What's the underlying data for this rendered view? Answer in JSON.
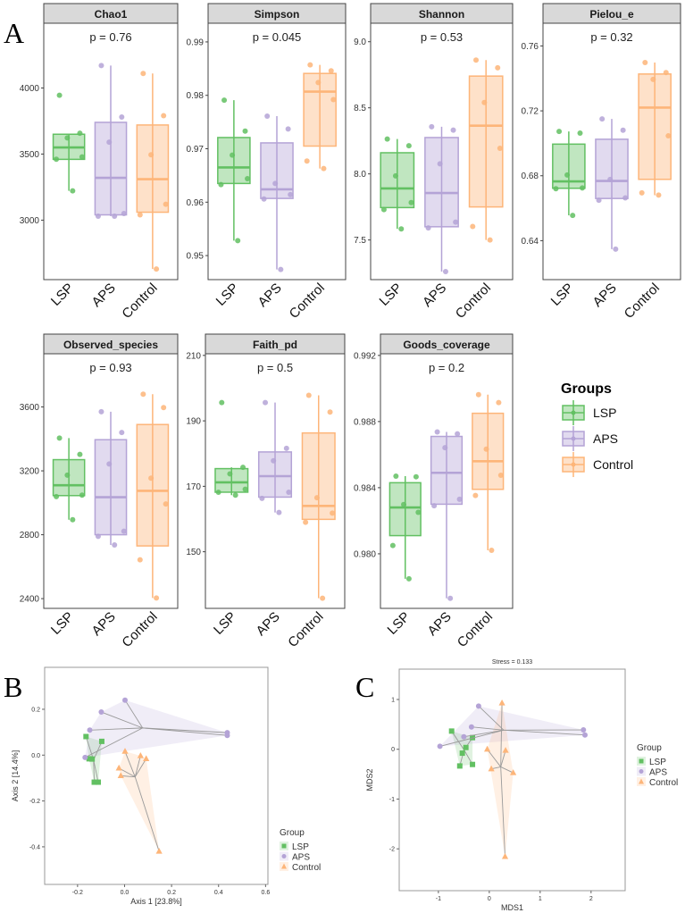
{
  "figure": {
    "panel_labels": [
      "A",
      "B",
      "C"
    ]
  },
  "groups": [
    {
      "name": "LSP",
      "color": "#62c062"
    },
    {
      "name": "APS",
      "color": "#b4a3d6"
    },
    {
      "name": "Control",
      "color": "#fdb579"
    }
  ],
  "legend": {
    "title": "Groups",
    "entries": [
      "LSP",
      "APS",
      "Control"
    ]
  },
  "chart_data": [
    {
      "type": "box",
      "title": "Chao1",
      "p_label": "p = 0.76",
      "ylim": [
        2550,
        4490
      ],
      "yticks": [
        3000,
        3500,
        4000
      ],
      "ytick_labels": [
        "3000",
        "3500",
        "4000"
      ],
      "categories": [
        "LSP",
        "APS",
        "Control"
      ],
      "series": [
        {
          "name": "LSP",
          "points": [
            3945,
            3658,
            3622,
            3479,
            3461,
            3222
          ],
          "q1": 3460,
          "median": 3550,
          "q3": 3650,
          "whisker_low": 3222,
          "whisker_high": 3650
        },
        {
          "name": "APS",
          "points": [
            4170,
            3780,
            3590,
            3050,
            3030,
            3030
          ],
          "q1": 3040,
          "median": 3320,
          "q3": 3740,
          "whisker_low": 3030,
          "whisker_high": 4170
        },
        {
          "name": "Control",
          "points": [
            4110,
            3790,
            3495,
            3120,
            3040,
            2630
          ],
          "q1": 3060,
          "median": 3310,
          "q3": 3720,
          "whisker_low": 2630,
          "whisker_high": 4110
        }
      ]
    },
    {
      "type": "box",
      "title": "Simpson",
      "p_label": "p = 0.045",
      "ylim": [
        0.9455,
        0.9935
      ],
      "yticks": [
        0.95,
        0.96,
        0.97,
        0.98,
        0.99
      ],
      "ytick_labels": [
        "0.95",
        "0.96",
        "0.97",
        "0.98",
        "0.99"
      ],
      "categories": [
        "LSP",
        "APS",
        "Control"
      ],
      "series": [
        {
          "name": "LSP",
          "points": [
            0.9791,
            0.9733,
            0.9688,
            0.9644,
            0.9633,
            0.9528
          ],
          "q1": 0.9635,
          "median": 0.9665,
          "q3": 0.9721,
          "whisker_low": 0.9528,
          "whisker_high": 0.9791
        },
        {
          "name": "APS",
          "points": [
            0.9761,
            0.9737,
            0.9635,
            0.9614,
            0.9606,
            0.9474
          ],
          "q1": 0.9607,
          "median": 0.9624,
          "q3": 0.9711,
          "whisker_low": 0.9474,
          "whisker_high": 0.9761
        },
        {
          "name": "Control",
          "points": [
            0.9857,
            0.9846,
            0.9824,
            0.9792,
            0.9677,
            0.9663
          ],
          "q1": 0.9705,
          "median": 0.9807,
          "q3": 0.9841,
          "whisker_low": 0.9663,
          "whisker_high": 0.9857
        }
      ]
    },
    {
      "type": "box",
      "title": "Shannon",
      "p_label": "p = 0.53",
      "ylim": [
        7.2,
        9.14
      ],
      "yticks": [
        7.5,
        8.0,
        8.5,
        9.0
      ],
      "ytick_labels": [
        "7.5",
        "8.0",
        "8.5",
        "9.0"
      ],
      "categories": [
        "LSP",
        "APS",
        "Control"
      ],
      "series": [
        {
          "name": "LSP",
          "points": [
            8.264,
            8.213,
            7.985,
            7.783,
            7.73,
            7.584
          ],
          "q1": 7.745,
          "median": 7.89,
          "q3": 8.16,
          "whisker_low": 7.584,
          "whisker_high": 8.264
        },
        {
          "name": "APS",
          "points": [
            8.357,
            8.331,
            8.076,
            7.635,
            7.591,
            7.261
          ],
          "q1": 7.6,
          "median": 7.855,
          "q3": 8.275,
          "whisker_low": 7.261,
          "whisker_high": 8.357
        },
        {
          "name": "Control",
          "points": [
            8.861,
            8.803,
            8.54,
            8.194,
            7.602,
            7.5
          ],
          "q1": 7.75,
          "median": 8.365,
          "q3": 8.74,
          "whisker_low": 7.5,
          "whisker_high": 8.861
        }
      ]
    },
    {
      "type": "box",
      "title": "Pielou_e",
      "p_label": "p = 0.32",
      "ylim": [
        0.616,
        0.774
      ],
      "yticks": [
        0.64,
        0.68,
        0.72,
        0.76
      ],
      "ytick_labels": [
        "0.64",
        "0.68",
        "0.72",
        "0.76"
      ],
      "categories": [
        "LSP",
        "APS",
        "Control"
      ],
      "series": [
        {
          "name": "LSP",
          "points": [
            0.7073,
            0.7063,
            0.6805,
            0.6725,
            0.672,
            0.6556
          ],
          "q1": 0.6723,
          "median": 0.6765,
          "q3": 0.6995,
          "whisker_low": 0.6556,
          "whisker_high": 0.7073
        },
        {
          "name": "APS",
          "points": [
            0.715,
            0.7081,
            0.6777,
            0.6664,
            0.6649,
            0.6348
          ],
          "q1": 0.666,
          "median": 0.6768,
          "q3": 0.7025,
          "whisker_low": 0.6348,
          "whisker_high": 0.715
        },
        {
          "name": "Control",
          "points": [
            0.7498,
            0.7436,
            0.7394,
            0.7046,
            0.6695,
            0.6681
          ],
          "q1": 0.6778,
          "median": 0.722,
          "q3": 0.7427,
          "whisker_low": 0.668,
          "whisker_high": 0.7498
        }
      ]
    },
    {
      "type": "box",
      "title": "Observed_species",
      "p_label": "p = 0.93",
      "ylim": [
        2339,
        3933
      ],
      "yticks": [
        2400,
        2800,
        3200,
        3600
      ],
      "ytick_labels": [
        "2400",
        "2800",
        "3200",
        "3600"
      ],
      "categories": [
        "LSP",
        "APS",
        "Control"
      ],
      "series": [
        {
          "name": "LSP",
          "points": [
            3405,
            3303,
            3173,
            3048,
            3039,
            2894
          ],
          "q1": 3045,
          "median": 3110,
          "q3": 3270,
          "whisker_low": 2894,
          "whisker_high": 3405
        },
        {
          "name": "APS",
          "points": [
            3570,
            3440,
            3243,
            2822,
            2790,
            2736
          ],
          "q1": 2800,
          "median": 3035,
          "q3": 3395,
          "whisker_low": 2736,
          "whisker_high": 3570
        },
        {
          "name": "Control",
          "points": [
            3680,
            3596,
            3154,
            2993,
            2643,
            2404
          ],
          "q1": 2730,
          "median": 3075,
          "q3": 3490,
          "whisker_low": 2404,
          "whisker_high": 3680
        }
      ]
    },
    {
      "type": "box",
      "title": "Faith_pd",
      "p_label": "p = 0.5",
      "ylim": [
        132.7,
        210.5
      ],
      "yticks": [
        150,
        170,
        190,
        210
      ],
      "ytick_labels": [
        "150",
        "170",
        "190",
        "210"
      ],
      "categories": [
        "LSP",
        "APS",
        "Control"
      ],
      "series": [
        {
          "name": "LSP",
          "points": [
            195.6,
            175.8,
            173.8,
            169.1,
            168.2,
            167.3
          ],
          "q1": 168.2,
          "median": 171.2,
          "q3": 175.4,
          "whisker_low": 167.3,
          "whisker_high": 175.8
        },
        {
          "name": "APS",
          "points": [
            195.6,
            181.6,
            177.8,
            168.2,
            166.3,
            162.0
          ],
          "q1": 166.7,
          "median": 173.1,
          "q3": 180.5,
          "whisker_low": 162.0,
          "whisker_high": 195.6
        },
        {
          "name": "Control",
          "points": [
            197.8,
            192.7,
            166.5,
            161.8,
            159.0,
            135.8
          ],
          "q1": 159.9,
          "median": 164.0,
          "q3": 186.3,
          "whisker_low": 135.8,
          "whisker_high": 197.8
        }
      ]
    },
    {
      "type": "box",
      "title": "Goods_coverage",
      "p_label": "p = 0.2",
      "ylim": [
        0.9767,
        0.9921
      ],
      "yticks": [
        0.98,
        0.984,
        0.988,
        0.992
      ],
      "ytick_labels": [
        "0.980",
        "0.984",
        "0.988",
        "0.992"
      ],
      "categories": [
        "LSP",
        "APS",
        "Control"
      ],
      "series": [
        {
          "name": "LSP",
          "points": [
            0.9847,
            0.98466,
            0.98298,
            0.98251,
            0.9805,
            0.97849
          ],
          "q1": 0.9811,
          "median": 0.9828,
          "q3": 0.9843,
          "whisker_low": 0.97849,
          "whisker_high": 0.9847
        },
        {
          "name": "APS",
          "points": [
            0.98737,
            0.98726,
            0.98642,
            0.9833,
            0.98291,
            0.97731
          ],
          "q1": 0.983,
          "median": 0.9849,
          "q3": 0.9871,
          "whisker_low": 0.97731,
          "whisker_high": 0.98737
        },
        {
          "name": "Control",
          "points": [
            0.98963,
            0.98915,
            0.98633,
            0.98475,
            0.98353,
            0.98021
          ],
          "q1": 0.9839,
          "median": 0.9856,
          "q3": 0.9885,
          "whisker_low": 0.98021,
          "whisker_high": 0.98963
        }
      ]
    },
    {
      "type": "scatter",
      "title": "",
      "xlabel": "Axis 1 [23.8%]",
      "ylabel": "Axis 2 [14.4%]",
      "xlim": [
        -0.34,
        0.61
      ],
      "ylim": [
        -0.564,
        0.383
      ],
      "xticks": [
        -0.2,
        0.0,
        0.2,
        0.4,
        0.6
      ],
      "xtick_labels": [
        "-0.2",
        "0.0",
        "0.2",
        "0.4",
        "0.6"
      ],
      "yticks": [
        -0.4,
        -0.2,
        0.0,
        0.2
      ],
      "ytick_labels": [
        "-0.4",
        "-0.2",
        "0.0",
        "0.2"
      ],
      "grid": false,
      "legend_title": "Group",
      "legend_position": "right",
      "series": [
        {
          "name": "LSP",
          "marker": "square",
          "x": [
            -0.164,
            -0.097,
            -0.151,
            -0.138,
            -0.129,
            -0.112
          ],
          "y": [
            0.081,
            0.06,
            -0.016,
            -0.017,
            -0.118,
            -0.118
          ]
        },
        {
          "name": "APS",
          "marker": "circle",
          "x": [
            0.002,
            -0.099,
            -0.148,
            -0.168,
            0.437,
            0.437
          ],
          "y": [
            0.24,
            0.188,
            0.109,
            -0.01,
            0.098,
            0.086
          ]
        },
        {
          "name": "Control",
          "marker": "triangle",
          "x": [
            0.002,
            0.068,
            0.092,
            -0.024,
            -0.016,
            0.147
          ],
          "y": [
            0.016,
            -0.003,
            -0.016,
            -0.057,
            -0.09,
            -0.42
          ]
        }
      ]
    },
    {
      "type": "scatter",
      "title": "Stress = 0.133",
      "xlabel": "MDS1",
      "ylabel": "MDS2",
      "xlim": [
        -1.77,
        2.67
      ],
      "ylim": [
        -2.84,
        1.61
      ],
      "xticks": [
        -1,
        0,
        1,
        2
      ],
      "xtick_labels": [
        "-1",
        "0",
        "1",
        "2"
      ],
      "yticks": [
        -2,
        -1,
        0,
        1
      ],
      "ytick_labels": [
        "-2",
        "-1",
        "0",
        "1"
      ],
      "grid": false,
      "legend_title": "Group",
      "legend_position": "right",
      "series": [
        {
          "name": "LSP",
          "marker": "square",
          "x": [
            -0.74,
            -0.33,
            -0.46,
            -0.53,
            -0.58,
            -0.33
          ],
          "y": [
            0.365,
            0.234,
            0.036,
            -0.078,
            -0.335,
            -0.305
          ]
        },
        {
          "name": "APS",
          "marker": "circle",
          "x": [
            -0.21,
            -0.35,
            -0.5,
            -0.97,
            1.85,
            1.88
          ],
          "y": [
            0.868,
            0.449,
            0.251,
            0.06,
            0.389,
            0.287
          ]
        },
        {
          "name": "Control",
          "marker": "triangle",
          "x": [
            0.25,
            -0.04,
            0.32,
            0.04,
            0.47,
            0.31
          ],
          "y": [
            0.928,
            0.0,
            -0.024,
            -0.395,
            -0.473,
            -2.156
          ]
        }
      ]
    }
  ]
}
